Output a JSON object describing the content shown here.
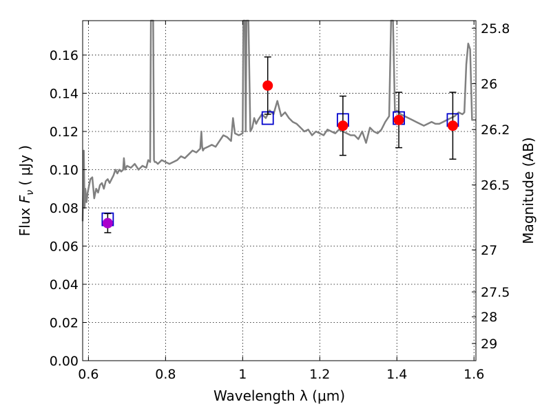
{
  "chart_data": {
    "type": "scatter",
    "xlabel": "Wavelength  λ (μm)",
    "ylabel": "Flux  F_ν ( μJy )",
    "ylabel_parts": {
      "prefix": "Flux  ",
      "symbol": "F",
      "subscript": "ν",
      "suffix": "  ( μJy )"
    },
    "ylabel_right": "Magnitude (AB)",
    "xlim": [
      0.585,
      1.605
    ],
    "ylim": [
      0.0,
      0.178
    ],
    "grid": true,
    "x_ticks": [
      0.6,
      0.8,
      1.0,
      1.2,
      1.4,
      1.6
    ],
    "x_tick_labels": [
      "0.6",
      "0.8",
      "1",
      "1.2",
      "1.4",
      "1.6"
    ],
    "y_ticks": [
      0.0,
      0.02,
      0.04,
      0.06,
      0.08,
      0.1,
      0.12,
      0.14,
      0.16
    ],
    "y_tick_labels": [
      "0.00",
      "0.02",
      "0.04",
      "0.06",
      "0.08",
      "0.10",
      "0.12",
      "0.14",
      "0.16"
    ],
    "right_ticks": [
      {
        "label": "25.8",
        "flux": 0.174
      },
      {
        "label": "26",
        "flux": 0.145
      },
      {
        "label": "26.2",
        "flux": 0.121
      },
      {
        "label": "26.5",
        "flux": 0.092
      },
      {
        "label": "27",
        "flux": 0.058
      },
      {
        "label": "27.5",
        "flux": 0.036
      },
      {
        "label": "28",
        "flux": 0.023
      },
      {
        "label": "29",
        "flux": 0.009
      }
    ],
    "series": [
      {
        "kind": "spectrum",
        "color": "#808080",
        "x": [
          0.585,
          0.588,
          0.59,
          0.592,
          0.595,
          0.598,
          0.6,
          0.605,
          0.61,
          0.615,
          0.62,
          0.625,
          0.63,
          0.635,
          0.64,
          0.645,
          0.65,
          0.655,
          0.66,
          0.665,
          0.67,
          0.675,
          0.68,
          0.685,
          0.69,
          0.692,
          0.695,
          0.7,
          0.71,
          0.72,
          0.73,
          0.74,
          0.75,
          0.755,
          0.76,
          0.762,
          0.764,
          0.766,
          0.768,
          0.77,
          0.772,
          0.775,
          0.78,
          0.79,
          0.8,
          0.81,
          0.82,
          0.83,
          0.84,
          0.85,
          0.86,
          0.87,
          0.88,
          0.89,
          0.893,
          0.895,
          0.897,
          0.9,
          0.91,
          0.92,
          0.93,
          0.94,
          0.95,
          0.96,
          0.97,
          0.975,
          0.98,
          0.99,
          1.0,
          1.002,
          1.004,
          1.006,
          1.008,
          1.01,
          1.015,
          1.02,
          1.025,
          1.03,
          1.035,
          1.04,
          1.05,
          1.06,
          1.07,
          1.08,
          1.09,
          1.1,
          1.11,
          1.12,
          1.13,
          1.14,
          1.15,
          1.16,
          1.17,
          1.18,
          1.19,
          1.2,
          1.21,
          1.22,
          1.23,
          1.24,
          1.25,
          1.26,
          1.27,
          1.28,
          1.29,
          1.3,
          1.31,
          1.32,
          1.33,
          1.34,
          1.35,
          1.36,
          1.37,
          1.38,
          1.385,
          1.39,
          1.395,
          1.4,
          1.41,
          1.42,
          1.43,
          1.44,
          1.45,
          1.46,
          1.47,
          1.48,
          1.49,
          1.5,
          1.51,
          1.52,
          1.53,
          1.54,
          1.55,
          1.56,
          1.57,
          1.575,
          1.58,
          1.585,
          1.59,
          1.595,
          1.6,
          1.605
        ],
        "values": [
          0.073,
          0.11,
          0.08,
          0.09,
          0.083,
          0.088,
          0.09,
          0.095,
          0.096,
          0.085,
          0.09,
          0.088,
          0.092,
          0.093,
          0.09,
          0.094,
          0.095,
          0.093,
          0.095,
          0.097,
          0.1,
          0.098,
          0.1,
          0.099,
          0.1,
          0.106,
          0.1,
          0.102,
          0.101,
          0.103,
          0.1,
          0.102,
          0.101,
          0.105,
          0.104,
          0.178,
          0.178,
          0.178,
          0.178,
          0.105,
          0.104,
          0.104,
          0.103,
          0.105,
          0.104,
          0.103,
          0.104,
          0.105,
          0.107,
          0.106,
          0.108,
          0.11,
          0.109,
          0.111,
          0.12,
          0.112,
          0.11,
          0.111,
          0.112,
          0.113,
          0.112,
          0.115,
          0.118,
          0.117,
          0.115,
          0.127,
          0.119,
          0.118,
          0.119,
          0.178,
          0.178,
          0.178,
          0.12,
          0.178,
          0.178,
          0.12,
          0.122,
          0.127,
          0.124,
          0.126,
          0.129,
          0.127,
          0.131,
          0.129,
          0.136,
          0.128,
          0.13,
          0.127,
          0.125,
          0.124,
          0.122,
          0.12,
          0.121,
          0.118,
          0.12,
          0.119,
          0.118,
          0.121,
          0.12,
          0.119,
          0.121,
          0.12,
          0.119,
          0.118,
          0.118,
          0.116,
          0.12,
          0.114,
          0.122,
          0.12,
          0.119,
          0.121,
          0.125,
          0.128,
          0.178,
          0.178,
          0.13,
          0.131,
          0.129,
          0.128,
          0.127,
          0.126,
          0.125,
          0.124,
          0.123,
          0.124,
          0.125,
          0.124,
          0.124,
          0.125,
          0.126,
          0.127,
          0.128,
          0.13,
          0.129,
          0.13,
          0.155,
          0.166,
          0.163,
          0.126,
          0.126,
          0.126
        ]
      },
      {
        "kind": "model_boxes",
        "color": "#0000cc",
        "x": [
          0.65,
          1.065,
          1.26,
          1.405,
          1.545
        ],
        "values": [
          0.074,
          0.127,
          0.126,
          0.127,
          0.126
        ]
      },
      {
        "kind": "observed",
        "color": "#ff0000",
        "x": [
          0.65,
          1.065,
          1.26,
          1.405,
          1.545
        ],
        "values": [
          0.072,
          0.144,
          0.123,
          0.126,
          0.123
        ],
        "yerr": [
          0.005,
          0.015,
          0.0155,
          0.0145,
          0.0175
        ],
        "point_colors": [
          "#aa00cc",
          "#ff0000",
          "#ff0000",
          "#ff0000",
          "#ff0000"
        ]
      }
    ]
  }
}
